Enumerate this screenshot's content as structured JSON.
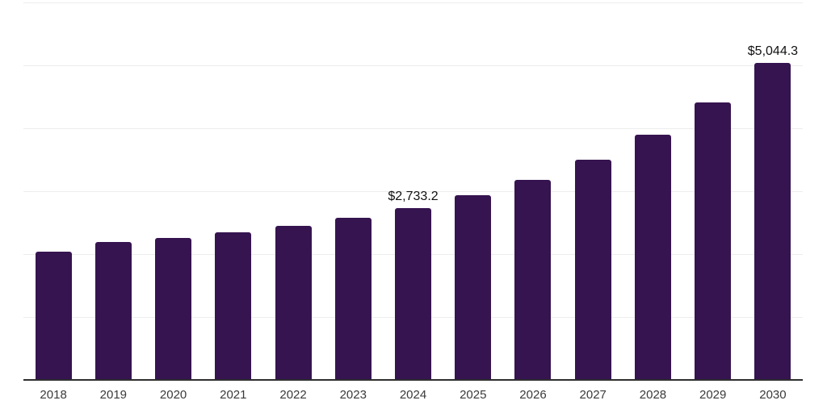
{
  "page": {
    "background_color": "#ffffff"
  },
  "chart_data": {
    "type": "bar",
    "title": "",
    "xlabel": "",
    "ylabel": "",
    "categories": [
      "2018",
      "2019",
      "2020",
      "2021",
      "2022",
      "2023",
      "2024",
      "2025",
      "2026",
      "2027",
      "2028",
      "2029",
      "2030"
    ],
    "values": [
      2045,
      2195,
      2255,
      2350,
      2455,
      2580,
      2733.2,
      2935,
      3185,
      3505,
      3900,
      4410,
      5044.3
    ],
    "data_labels": {
      "2024": "$2,733.2",
      "2030": "$5,044.3"
    },
    "ylim": [
      0,
      6000
    ],
    "grid": true,
    "grid_step": 1000,
    "legend": false,
    "colors": {
      "bar": "#361450",
      "grid": "#ededed",
      "axis": "#2e2e2e",
      "tick_label": "#3a3a3a",
      "data_label": "#111111"
    }
  }
}
